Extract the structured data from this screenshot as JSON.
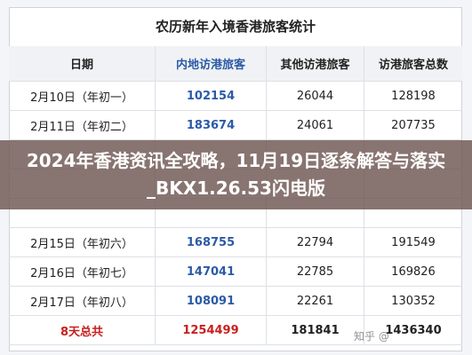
{
  "table": {
    "title": "农历新年入境香港旅客统计",
    "headers": [
      "日期",
      "内地访港旅客",
      "其他访港旅客",
      "访港旅客总数"
    ],
    "rows": [
      [
        "2月10日（年初一）",
        "102154",
        "26044",
        "128198"
      ],
      [
        "2月11日（年初二）",
        "183674",
        "24061",
        "207735"
      ],
      null,
      null,
      null,
      [
        "2月15日（年初六）",
        "168755",
        "22794",
        "191549"
      ],
      [
        "2月16日（年初七）",
        "147041",
        "22785",
        "169826"
      ],
      [
        "2月17日（年初八）",
        "108091",
        "22261",
        "130352"
      ]
    ],
    "total": [
      "8天总共",
      "1254499",
      "181841",
      "1436340"
    ]
  },
  "banner": "2024年香港资讯全攻略，11月19日逐条解答与落实_BKX1.26.53闪电版",
  "watermark": "知乎 @"
}
